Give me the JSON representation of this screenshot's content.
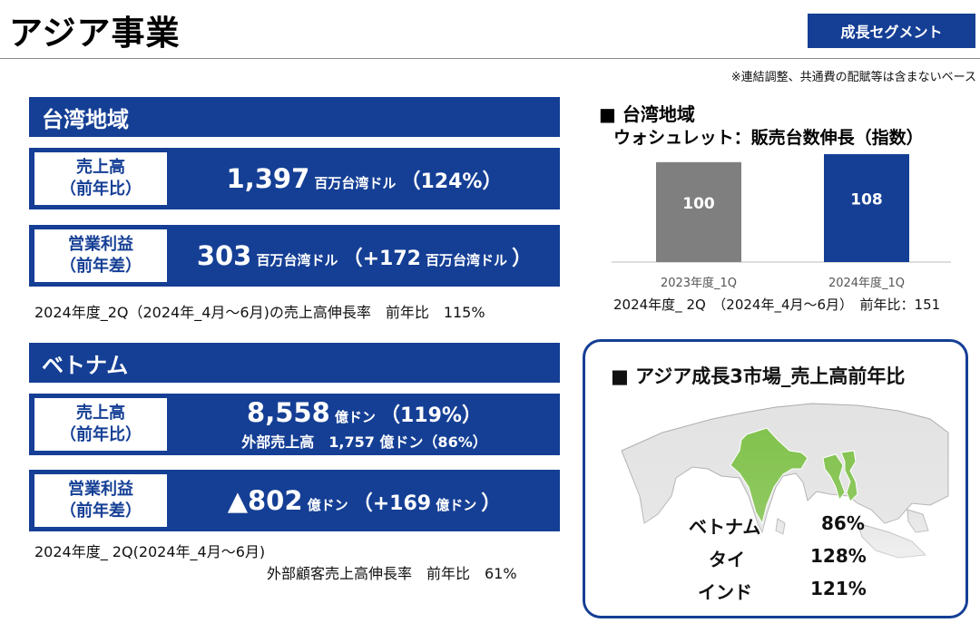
{
  "header": {
    "title": "アジア事業",
    "segment_badge": "成長セグメント",
    "note": "※連結調整、共通費の配賦等は含まないベース"
  },
  "taiwan": {
    "heading": "台湾地域",
    "sales": {
      "label_line1": "売上高",
      "label_line2": "（前年比）",
      "value": "1,397",
      "unit": "百万台湾ドル",
      "ratio": "（124%）"
    },
    "op_profit": {
      "label_line1": "営業利益",
      "label_line2": "（前年差）",
      "value": "303",
      "unit": "百万台湾ドル",
      "diff_prefix": "（+172",
      "diff_unit": "百万台湾ドル",
      "diff_suffix": "）"
    },
    "footnote": "2024年度_2Q（2024年_4月～6月)の売上高伸長率　前年比　115%"
  },
  "vietnam": {
    "heading": "ベトナム",
    "sales": {
      "label_line1": "売上高",
      "label_line2": "（前年比）",
      "value": "8,558",
      "unit": "億ドン",
      "ratio": "（119%）",
      "external": "外部売上高　1,757 億ドン（86%）"
    },
    "op_profit": {
      "label_line1": "営業利益",
      "label_line2": "（前年差）",
      "value": "▲802",
      "unit": "億ドン",
      "diff_prefix": "（+169",
      "diff_unit": "億ドン",
      "diff_suffix": "）"
    },
    "footnote_line1": "2024年度_ 2Q(2024年_4月～6月)",
    "footnote_line2": "外部顧客売上高伸長率　前年比　61%"
  },
  "washlet_chart": {
    "heading": "■ 台湾地域",
    "subheading": "ウォシュレット：販売台数伸長（指数）",
    "footnote": "2024年度_ 2Q　（2024年_4月～6月）　前年比：151"
  },
  "chart_data": {
    "type": "bar",
    "title": "ウォシュレット：販売台数伸長（指数）",
    "categories": [
      "2023年度_1Q",
      "2024年度_1Q"
    ],
    "values": [
      100,
      108
    ],
    "value_labels": [
      "100",
      "108"
    ],
    "colors": [
      "#7f7f7f",
      "#153f95"
    ],
    "ylim": [
      0,
      108
    ],
    "grid": false,
    "legend": "none"
  },
  "asia_markets": {
    "heading": "■ アジア成長3市場_売上高前年比",
    "markets": [
      {
        "name": "ベトナム",
        "value": "86%"
      },
      {
        "name": "タイ",
        "value": "128%"
      },
      {
        "name": "インド",
        "value": "121%"
      }
    ],
    "colors": {
      "highlight": "#7bbf44",
      "land": "#e2e2e2",
      "border": "#aaaaaa"
    }
  }
}
